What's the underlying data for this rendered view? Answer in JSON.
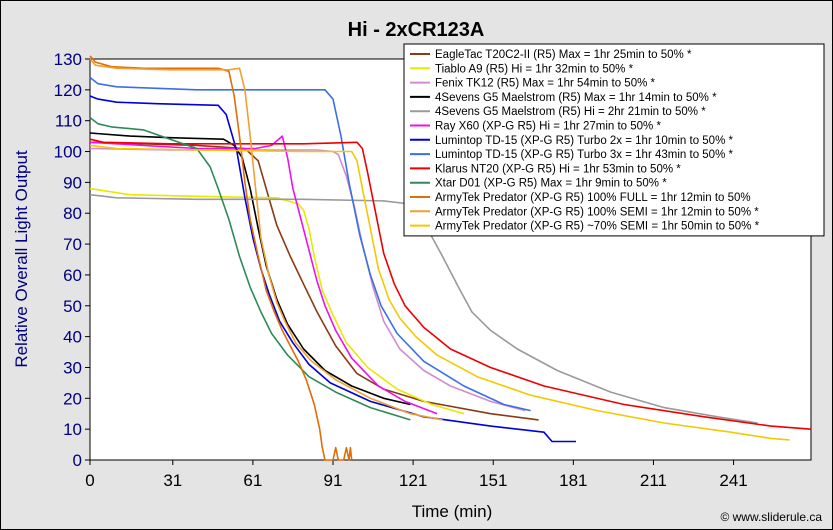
{
  "chart_data": {
    "type": "line",
    "title": "Hi - 2xCR123A",
    "xlabel": "Time (min)",
    "ylabel": "Relative Overall Light Output",
    "xlim": [
      0,
      270
    ],
    "ylim": [
      0,
      130
    ],
    "xticks": [
      "0",
      "31",
      "61",
      "91",
      "121",
      "151",
      "181",
      "211",
      "241"
    ],
    "yticks": [
      "0",
      "10",
      "20",
      "30",
      "40",
      "50",
      "60",
      "70",
      "80",
      "90",
      "100",
      "110",
      "120",
      "130"
    ],
    "grid": false,
    "legend_position": "top-right",
    "credit": "© www.sliderule.ca",
    "series": [
      {
        "name": "EagleTac T20C2-II (R5) Max = 1hr 25min to 50% *",
        "color": "#8b3a14",
        "points": [
          [
            0,
            103
          ],
          [
            20,
            102.5
          ],
          [
            40,
            102
          ],
          [
            58,
            101
          ],
          [
            63,
            97
          ],
          [
            66,
            88
          ],
          [
            70,
            76
          ],
          [
            75,
            66
          ],
          [
            80,
            57
          ],
          [
            85,
            48
          ],
          [
            92,
            37
          ],
          [
            100,
            28
          ],
          [
            110,
            23
          ],
          [
            125,
            19
          ],
          [
            150,
            15
          ],
          [
            168,
            13
          ]
        ]
      },
      {
        "name": "Tiablo A9 (R5) Hi = 1hr 32min to 50% *",
        "color": "#e8e800",
        "points": [
          [
            0,
            88
          ],
          [
            15,
            86
          ],
          [
            40,
            85.5
          ],
          [
            70,
            85
          ],
          [
            74,
            84
          ],
          [
            78,
            83
          ],
          [
            80,
            81
          ],
          [
            82,
            75
          ],
          [
            84,
            66
          ],
          [
            87,
            55
          ],
          [
            91,
            47
          ],
          [
            96,
            38
          ],
          [
            104,
            30
          ],
          [
            115,
            23
          ],
          [
            128,
            18
          ],
          [
            140,
            15
          ]
        ]
      },
      {
        "name": "Fenix TK12 (R5) Max = 1hr 54min to 50% *",
        "color": "#d08cd0",
        "points": [
          [
            0,
            101
          ],
          [
            30,
            100.5
          ],
          [
            60,
            100.5
          ],
          [
            85,
            100.5
          ],
          [
            91,
            100
          ],
          [
            93,
            99
          ],
          [
            96,
            92
          ],
          [
            99,
            82
          ],
          [
            102,
            70
          ],
          [
            106,
            56
          ],
          [
            110,
            45
          ],
          [
            116,
            36
          ],
          [
            125,
            29
          ],
          [
            135,
            24
          ],
          [
            150,
            19
          ],
          [
            163,
            16
          ]
        ]
      },
      {
        "name": "4Sevens G5 Maelstrom (R5) Max = 1hr 14min to 50% *",
        "color": "#000000",
        "points": [
          [
            0,
            106
          ],
          [
            15,
            105
          ],
          [
            30,
            104.5
          ],
          [
            50,
            104
          ],
          [
            54,
            102
          ],
          [
            57,
            98
          ],
          [
            60,
            88
          ],
          [
            63,
            75
          ],
          [
            66,
            63
          ],
          [
            70,
            52
          ],
          [
            74,
            44
          ],
          [
            80,
            36
          ],
          [
            88,
            29
          ],
          [
            98,
            24
          ],
          [
            110,
            20
          ],
          [
            120,
            18
          ]
        ]
      },
      {
        "name": "4Sevens G5 Maelstrom (R5) Hi = 2hr 21min to 50% *",
        "color": "#9a9a9a",
        "points": [
          [
            0,
            86
          ],
          [
            10,
            85
          ],
          [
            40,
            84.5
          ],
          [
            80,
            84.5
          ],
          [
            110,
            84
          ],
          [
            120,
            83
          ],
          [
            123,
            80
          ],
          [
            127,
            74
          ],
          [
            132,
            66
          ],
          [
            138,
            56
          ],
          [
            143,
            48
          ],
          [
            150,
            42
          ],
          [
            160,
            36
          ],
          [
            175,
            29
          ],
          [
            195,
            22
          ],
          [
            215,
            17
          ],
          [
            235,
            14
          ],
          [
            250,
            12
          ]
        ]
      },
      {
        "name": "Ray X60 (XP-G R5) Hi = 1hr 27min to 50% *",
        "color": "#ee10ee",
        "points": [
          [
            0,
            103
          ],
          [
            20,
            102
          ],
          [
            40,
            101
          ],
          [
            62,
            101
          ],
          [
            68,
            102
          ],
          [
            72,
            105
          ],
          [
            74,
            98
          ],
          [
            76,
            88
          ],
          [
            79,
            78
          ],
          [
            82,
            68
          ],
          [
            85,
            58
          ],
          [
            88,
            50
          ],
          [
            92,
            42
          ],
          [
            98,
            33
          ],
          [
            108,
            24
          ],
          [
            118,
            19
          ],
          [
            130,
            15
          ]
        ]
      },
      {
        "name": "Lumintop TD-15 (XP-G R5) Turbo 2x = 1hr 10min to 50% *",
        "color": "#0000dd",
        "points": [
          [
            0,
            118
          ],
          [
            3,
            117
          ],
          [
            10,
            116
          ],
          [
            25,
            115.5
          ],
          [
            48,
            115
          ],
          [
            51,
            112
          ],
          [
            55,
            100
          ],
          [
            58,
            85
          ],
          [
            61,
            72
          ],
          [
            64,
            62
          ],
          [
            67,
            54
          ],
          [
            71,
            45
          ],
          [
            76,
            38
          ],
          [
            82,
            31
          ],
          [
            90,
            25
          ],
          [
            105,
            19
          ],
          [
            125,
            14
          ],
          [
            150,
            11
          ],
          [
            170,
            9
          ],
          [
            173,
            6
          ],
          [
            182,
            6
          ]
        ]
      },
      {
        "name": "Lumintop TD-15 (XP-G R5) Turbo 3x = 1hr 43min to 50% *",
        "color": "#3a6fe8",
        "points": [
          [
            0,
            124
          ],
          [
            3,
            122
          ],
          [
            10,
            121
          ],
          [
            40,
            120
          ],
          [
            70,
            120
          ],
          [
            88,
            120
          ],
          [
            91,
            117
          ],
          [
            94,
            105
          ],
          [
            97,
            90
          ],
          [
            101,
            73
          ],
          [
            105,
            60
          ],
          [
            109,
            50
          ],
          [
            115,
            41
          ],
          [
            125,
            32
          ],
          [
            140,
            24
          ],
          [
            155,
            18
          ],
          [
            165,
            16
          ]
        ]
      },
      {
        "name": "Klarus NT20 (XP-G R5) Hi = 1hr 53min to 50% *",
        "color": "#ee0000",
        "points": [
          [
            0,
            104
          ],
          [
            5,
            103
          ],
          [
            30,
            102.5
          ],
          [
            80,
            102.5
          ],
          [
            100,
            103
          ],
          [
            102,
            101
          ],
          [
            104,
            93
          ],
          [
            107,
            80
          ],
          [
            110,
            67
          ],
          [
            114,
            57
          ],
          [
            118,
            50
          ],
          [
            125,
            43
          ],
          [
            135,
            36
          ],
          [
            150,
            30
          ],
          [
            170,
            24
          ],
          [
            200,
            18
          ],
          [
            230,
            14
          ],
          [
            255,
            11
          ],
          [
            270,
            10
          ]
        ]
      },
      {
        "name": "Xtar D01 (XP-G R5) Max = 1hr 9min to 50% *",
        "color": "#2e8b57",
        "points": [
          [
            0,
            111
          ],
          [
            3,
            109
          ],
          [
            8,
            108
          ],
          [
            20,
            107
          ],
          [
            30,
            104
          ],
          [
            40,
            101
          ],
          [
            45,
            95
          ],
          [
            48,
            88
          ],
          [
            52,
            78
          ],
          [
            56,
            66
          ],
          [
            60,
            56
          ],
          [
            64,
            48
          ],
          [
            68,
            41
          ],
          [
            74,
            34
          ],
          [
            82,
            27
          ],
          [
            92,
            22
          ],
          [
            105,
            17
          ],
          [
            120,
            13
          ]
        ]
      },
      {
        "name": "ArmyTek Predator (XP-G R5) 100% FULL = 1hr 12min to 50%",
        "color": "#e06d06",
        "points": [
          [
            0,
            131
          ],
          [
            2,
            129
          ],
          [
            8,
            127.5
          ],
          [
            20,
            127
          ],
          [
            48,
            127
          ],
          [
            52,
            126
          ],
          [
            54,
            118
          ],
          [
            56,
            105
          ],
          [
            58,
            90
          ],
          [
            60,
            78
          ],
          [
            63,
            66
          ],
          [
            66,
            55
          ],
          [
            69,
            48
          ],
          [
            72,
            42
          ],
          [
            75,
            37
          ],
          [
            78,
            32
          ],
          [
            81,
            26
          ],
          [
            84,
            18
          ],
          [
            86,
            10
          ],
          [
            87,
            4
          ],
          [
            88,
            0
          ],
          [
            91,
            0
          ],
          [
            92,
            4
          ],
          [
            93,
            0
          ],
          [
            95,
            0
          ],
          [
            96,
            4
          ],
          [
            97,
            0
          ],
          [
            97.5,
            4
          ],
          [
            98,
            0
          ]
        ]
      },
      {
        "name": "ArmyTek Predator (XP-G R5) 100% SEMI = 1hr 12min to 50% *",
        "color": "#f0a030",
        "points": [
          [
            0,
            130
          ],
          [
            2,
            128
          ],
          [
            10,
            127
          ],
          [
            30,
            126.5
          ],
          [
            52,
            126.5
          ],
          [
            56,
            127
          ],
          [
            58,
            120
          ],
          [
            60,
            105
          ],
          [
            62,
            88
          ],
          [
            64,
            72
          ],
          [
            67,
            60
          ],
          [
            70,
            51
          ],
          [
            73,
            45
          ],
          [
            77,
            38
          ],
          [
            83,
            32
          ],
          [
            92,
            26
          ],
          [
            105,
            20
          ],
          [
            120,
            15
          ],
          [
            132,
            13
          ]
        ]
      },
      {
        "name": "ArmyTek Predator (XP-G R5) ~70% SEMI = 1hr 50min to 50% *",
        "color": "#f5c800",
        "points": [
          [
            0,
            102
          ],
          [
            10,
            101
          ],
          [
            40,
            100.5
          ],
          [
            80,
            100
          ],
          [
            98,
            100
          ],
          [
            100,
            97
          ],
          [
            102,
            88
          ],
          [
            105,
            75
          ],
          [
            108,
            62
          ],
          [
            112,
            52
          ],
          [
            116,
            46
          ],
          [
            122,
            40
          ],
          [
            130,
            34
          ],
          [
            145,
            27
          ],
          [
            165,
            21
          ],
          [
            190,
            16
          ],
          [
            215,
            12
          ],
          [
            240,
            9
          ],
          [
            255,
            7
          ],
          [
            262,
            6.5
          ]
        ]
      }
    ]
  }
}
